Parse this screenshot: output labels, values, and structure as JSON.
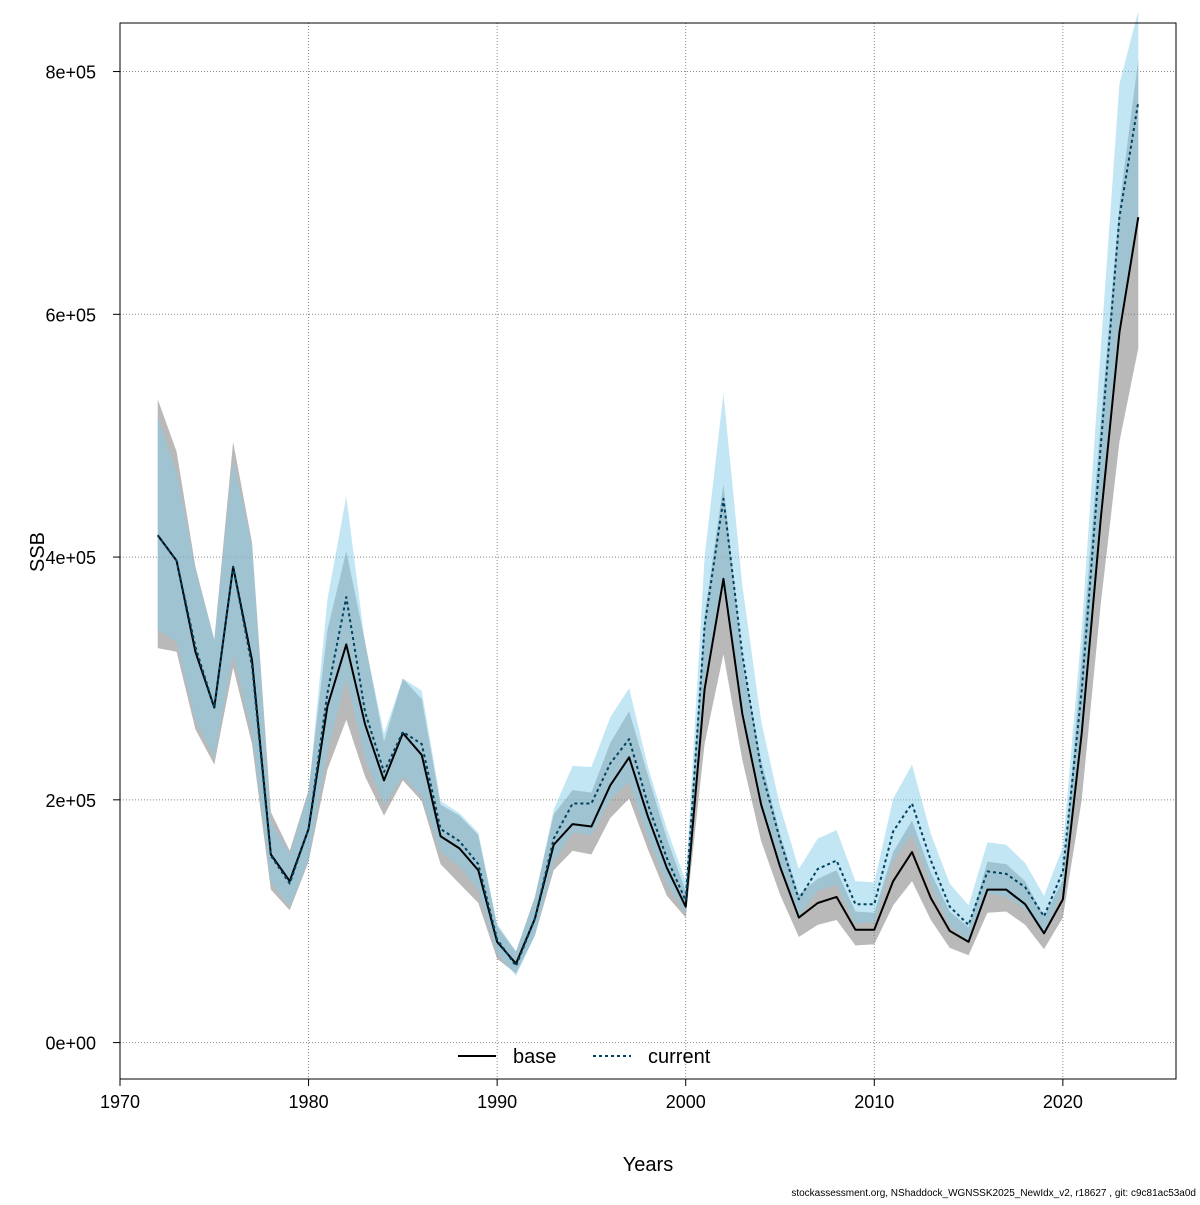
{
  "chart_data": {
    "type": "line",
    "title": "",
    "xlabel": "Years",
    "ylabel": "SSB",
    "xlim": [
      1970,
      2026
    ],
    "ylim": [
      -30000,
      840000
    ],
    "xticks": [
      1970,
      1980,
      1990,
      2000,
      2010,
      2020
    ],
    "xtick_labels": [
      "1970",
      "1980",
      "1990",
      "2000",
      "2010",
      "2020"
    ],
    "yticks": [
      0,
      200000,
      400000,
      600000,
      800000
    ],
    "ytick_labels": [
      "0e+00",
      "2e+05",
      "4e+05",
      "6e+05",
      "8e+05"
    ],
    "grid": true,
    "legend_position": "bottom-center",
    "x": [
      1972,
      1973,
      1974,
      1975,
      1976,
      1977,
      1978,
      1979,
      1980,
      1981,
      1982,
      1983,
      1984,
      1985,
      1986,
      1987,
      1988,
      1989,
      1990,
      1991,
      1992,
      1993,
      1994,
      1995,
      1996,
      1997,
      1998,
      1999,
      2000,
      2001,
      2002,
      2003,
      2004,
      2005,
      2006,
      2007,
      2008,
      2009,
      2010,
      2011,
      2012,
      2013,
      2014,
      2015,
      2016,
      2017,
      2018,
      2019,
      2020,
      2021,
      2022,
      2023,
      2024
    ],
    "series": [
      {
        "name": "base",
        "line_style": "solid",
        "line_color": "#000000",
        "band_color": "#808080",
        "values": [
          418000,
          397000,
          322000,
          276000,
          392000,
          315000,
          155000,
          133000,
          176000,
          277000,
          328000,
          262000,
          216000,
          255000,
          237000,
          170000,
          160000,
          142000,
          83000,
          65000,
          102000,
          163000,
          180000,
          178000,
          212000,
          235000,
          186000,
          144000,
          112000,
          291000,
          382000,
          271000,
          196000,
          145000,
          103000,
          115000,
          120000,
          93000,
          93000,
          133000,
          157000,
          119000,
          92000,
          83000,
          126000,
          126000,
          114000,
          90000,
          118000,
          255000,
          430000,
          585000,
          680000
        ],
        "lower": [
          325000,
          322000,
          258000,
          229000,
          309000,
          246000,
          126000,
          109000,
          149000,
          225000,
          266000,
          219000,
          187000,
          216000,
          199000,
          147000,
          131000,
          115000,
          69000,
          57000,
          88000,
          142000,
          158000,
          155000,
          185000,
          201000,
          159000,
          121000,
          103000,
          246000,
          320000,
          233000,
          166000,
          122000,
          87000,
          97000,
          101000,
          80000,
          81000,
          113000,
          133000,
          101000,
          78000,
          72000,
          107000,
          108000,
          97000,
          77000,
          103000,
          200000,
          360000,
          495000,
          572000
        ],
        "upper": [
          530000,
          487000,
          392000,
          332000,
          495000,
          412000,
          190000,
          158000,
          208000,
          340000,
          405000,
          330000,
          248000,
          300000,
          283000,
          196000,
          187000,
          171000,
          96000,
          75000,
          120000,
          188000,
          208000,
          206000,
          247000,
          273000,
          220000,
          168000,
          125000,
          352000,
          460000,
          318000,
          233000,
          172000,
          122000,
          135000,
          142000,
          108000,
          107000,
          157000,
          183000,
          140000,
          108000,
          95000,
          149000,
          147000,
          133000,
          104000,
          134000,
          318000,
          510000,
          690000,
          810000
        ]
      },
      {
        "name": "current",
        "line_style": "dotted",
        "line_color": "#00425e",
        "band_color": "#87ceeb",
        "values": [
          418000,
          397000,
          326000,
          276000,
          392000,
          310000,
          154000,
          131000,
          176000,
          288000,
          367000,
          272000,
          223000,
          256000,
          246000,
          176000,
          166000,
          147000,
          85000,
          63000,
          102000,
          168000,
          197000,
          197000,
          230000,
          250000,
          196000,
          152000,
          117000,
          343000,
          448000,
          320000,
          225000,
          167000,
          118000,
          143000,
          150000,
          114000,
          114000,
          174000,
          197000,
          150000,
          112000,
          97000,
          141000,
          139000,
          128000,
          104000,
          141000,
          290000,
          490000,
          680000,
          775000
        ],
        "lower": [
          340000,
          330000,
          265000,
          235000,
          320000,
          255000,
          132000,
          112000,
          151000,
          240000,
          300000,
          234000,
          196000,
          219000,
          203000,
          157000,
          145000,
          126000,
          73000,
          55000,
          88000,
          149000,
          173000,
          171000,
          200000,
          215000,
          169000,
          131000,
          106000,
          299000,
          375000,
          275000,
          192000,
          145000,
          104000,
          125000,
          130000,
          98000,
          99000,
          150000,
          172000,
          130000,
          96000,
          84000,
          123000,
          120000,
          110000,
          90000,
          125000,
          250000,
          430000,
          590000,
          680000
        ],
        "upper": [
          515000,
          470000,
          390000,
          332000,
          480000,
          410000,
          182000,
          155000,
          206000,
          365000,
          450000,
          328000,
          255000,
          300000,
          290000,
          199000,
          189000,
          173000,
          98000,
          75000,
          119000,
          192000,
          228000,
          227000,
          268000,
          292000,
          227000,
          176000,
          133000,
          400000,
          535000,
          377000,
          265000,
          195000,
          143000,
          168000,
          175000,
          133000,
          132000,
          201000,
          229000,
          172000,
          131000,
          113000,
          165000,
          163000,
          148000,
          121000,
          161000,
          340000,
          570000,
          790000,
          850000
        ]
      }
    ]
  },
  "footer": {
    "credit": "stockassessment.org, NShaddock_WGNSSK2025_NewIdx_v2, r18627 , git: c9c81ac53a0d"
  }
}
